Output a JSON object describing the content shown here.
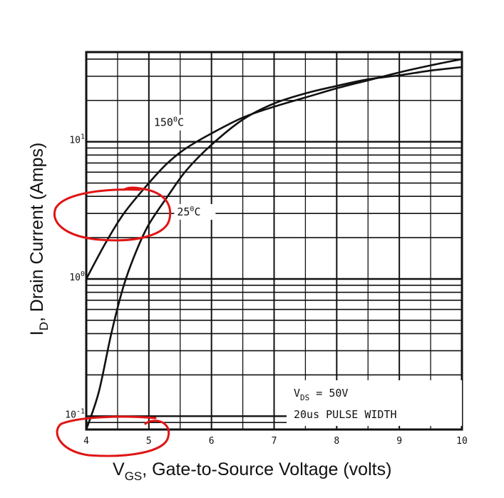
{
  "chart_data": {
    "type": "line",
    "xlabel": {
      "main": "V",
      "sub": "GS",
      "rest": ", Gate-to-Source Voltage (volts)"
    },
    "ylabel": {
      "main": "I",
      "sub": "D",
      "rest": ", Drain Current (Amps)"
    },
    "xlim": [
      4,
      10
    ],
    "ylim": [
      0.08,
      45
    ],
    "y_scale": "log",
    "grid": true,
    "x_ticks": [
      {
        "value": 4,
        "label": "4"
      },
      {
        "value": 5,
        "label": "5"
      },
      {
        "value": 6,
        "label": "6"
      },
      {
        "value": 7,
        "label": "7"
      },
      {
        "value": 8,
        "label": "8"
      },
      {
        "value": 9,
        "label": "9"
      },
      {
        "value": 10,
        "label": "10"
      }
    ],
    "y_ticks": [
      {
        "value": 0.1,
        "base": "10",
        "exp": "-1"
      },
      {
        "value": 1,
        "base": "10",
        "exp": "0"
      },
      {
        "value": 10,
        "base": "10",
        "exp": "1"
      }
    ],
    "series": [
      {
        "name": "150°C",
        "label_base": "150",
        "label_sup": "0",
        "label_end": "C",
        "points": [
          [
            4.0,
            1.0
          ],
          [
            4.3,
            1.8
          ],
          [
            4.6,
            3.0
          ],
          [
            5.0,
            5.0
          ],
          [
            5.3,
            7.0
          ],
          [
            5.6,
            9.0
          ],
          [
            6.0,
            11.5
          ],
          [
            6.5,
            15.0
          ],
          [
            7.0,
            18.0
          ],
          [
            7.5,
            21.0
          ],
          [
            8.0,
            24.5
          ],
          [
            8.5,
            28.0
          ],
          [
            9.0,
            32.0
          ],
          [
            9.5,
            36.0
          ],
          [
            10.0,
            40.0
          ]
        ]
      },
      {
        "name": "25°C",
        "label_base": "25",
        "label_sup": "0",
        "label_end": "C",
        "points": [
          [
            4.0,
            0.08
          ],
          [
            4.2,
            0.15
          ],
          [
            4.4,
            0.4
          ],
          [
            4.6,
            0.9
          ],
          [
            4.8,
            1.6
          ],
          [
            5.0,
            2.5
          ],
          [
            5.3,
            4.0
          ],
          [
            5.6,
            6.2
          ],
          [
            6.0,
            9.5
          ],
          [
            6.5,
            14.5
          ],
          [
            7.0,
            19.0
          ],
          [
            7.5,
            22.5
          ],
          [
            8.0,
            25.5
          ],
          [
            8.5,
            28.5
          ],
          [
            9.0,
            30.5
          ],
          [
            9.5,
            33.0
          ],
          [
            10.0,
            35.0
          ]
        ]
      }
    ],
    "annotations": [
      {
        "main": "V",
        "sub": "DS",
        "rest": " = 50V"
      },
      {
        "main": "20us PULSE WIDTH"
      }
    ],
    "highlight_color": "#e01414"
  }
}
